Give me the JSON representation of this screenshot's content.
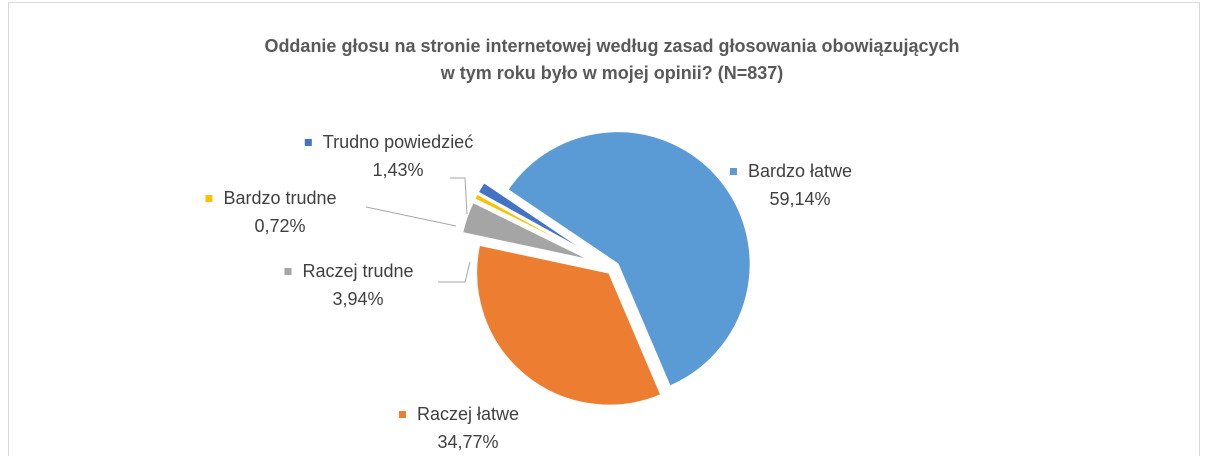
{
  "chart_data": {
    "type": "pie",
    "title": [
      "Oddanie głosu na stronie internetowej według zasad głosowania obowiązujących",
      "w tym roku było w mojej opinii? (N=837)"
    ],
    "categories": [
      "Bardzo łatwe",
      "Raczej łatwe",
      "Raczej trudne",
      "Bardzo trudne",
      "Trudno powiedzieć"
    ],
    "values": [
      59.14,
      34.77,
      3.94,
      0.72,
      1.43
    ],
    "value_labels": [
      "59,14%",
      "34,77%",
      "3,94%",
      "0,72%",
      "1,43%"
    ],
    "colors": [
      "#5b9bd5",
      "#ed7d31",
      "#a5a5a5",
      "#ffc000",
      "#4472c4"
    ]
  }
}
